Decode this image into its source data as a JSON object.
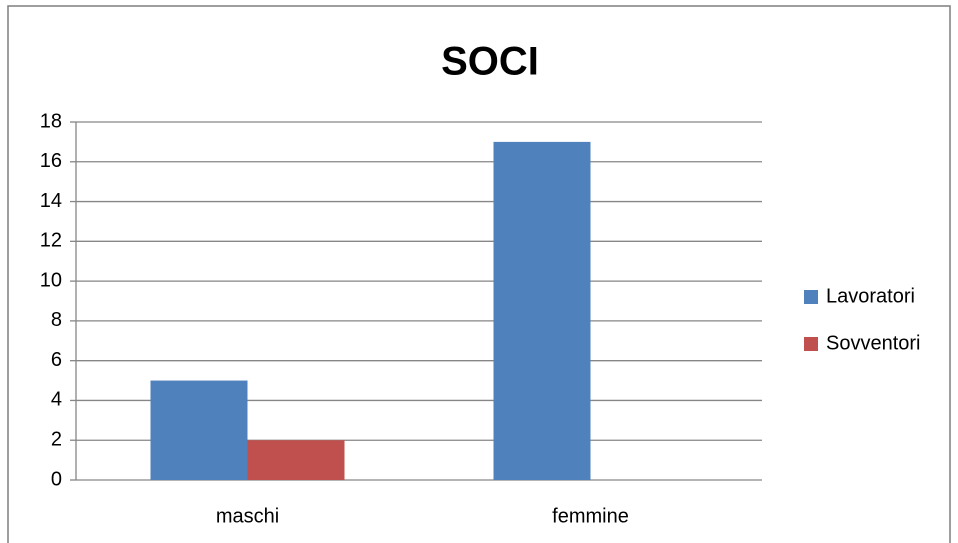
{
  "chart_data": {
    "type": "bar",
    "title": "SOCI",
    "categories": [
      "maschi",
      "femmine"
    ],
    "series": [
      {
        "name": "Lavoratori",
        "color": "#4f81bd",
        "values": [
          5,
          17
        ]
      },
      {
        "name": "Sovventori",
        "color": "#c0504d",
        "values": [
          2,
          0
        ]
      }
    ],
    "ylim": [
      0,
      18
    ],
    "yticks": [
      0,
      2,
      4,
      6,
      8,
      10,
      12,
      14,
      16,
      18
    ],
    "grid": true,
    "legend": "right"
  }
}
